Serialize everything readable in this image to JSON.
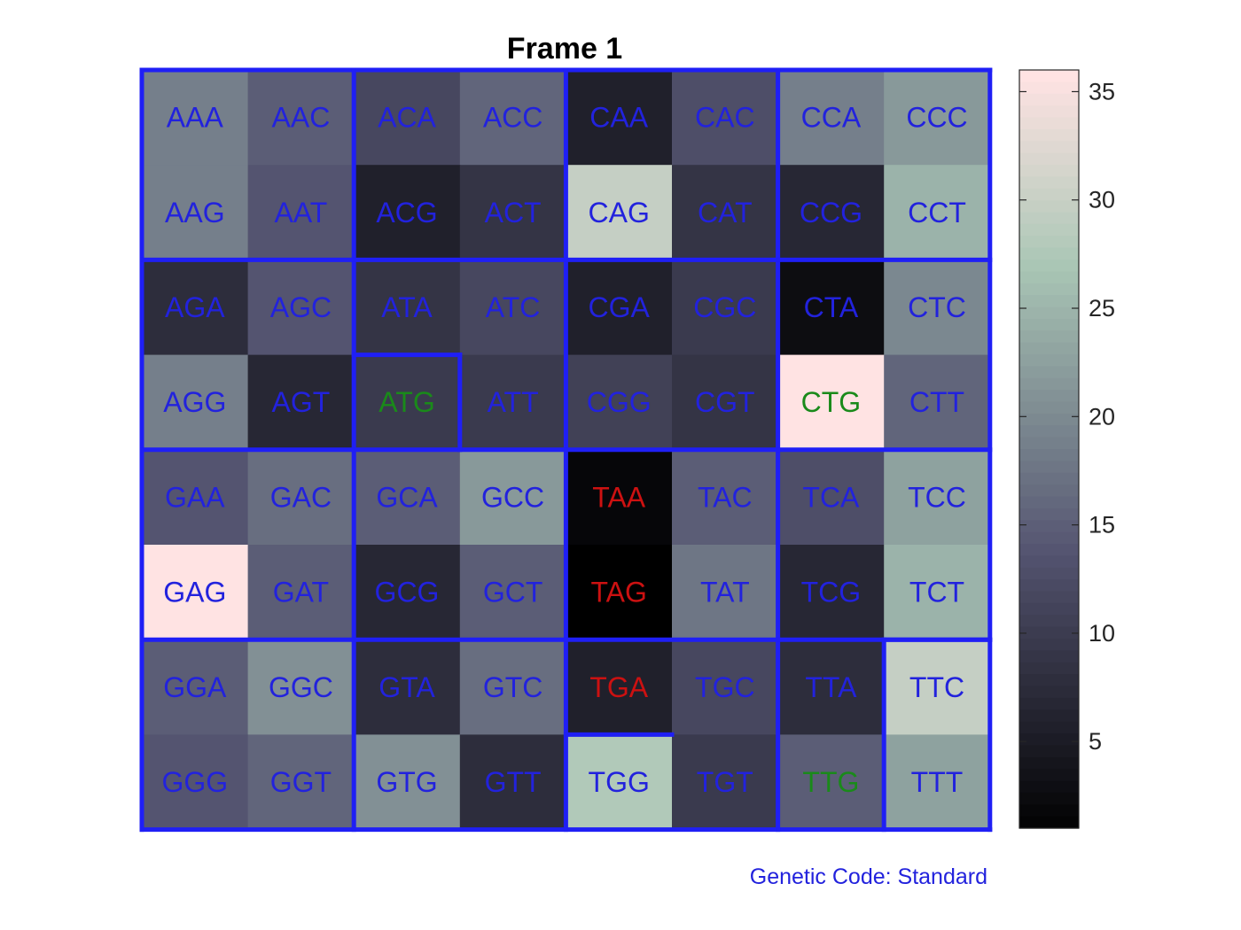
{
  "chart_data": {
    "type": "heatmap",
    "title": "Frame 1",
    "footnote": "Genetic Code: Standard",
    "rows": [
      [
        "AAA",
        "AAC",
        "ACA",
        "ACC",
        "CAA",
        "CAC",
        "CCA",
        "CCC"
      ],
      [
        "AAG",
        "AAT",
        "ACG",
        "ACT",
        "CAG",
        "CAT",
        "CCG",
        "CCT"
      ],
      [
        "AGA",
        "AGC",
        "ATA",
        "ATC",
        "CGA",
        "CGC",
        "CTA",
        "CTC"
      ],
      [
        "AGG",
        "AGT",
        "ATG",
        "ATT",
        "CGG",
        "CGT",
        "CTG",
        "CTT"
      ],
      [
        "GAA",
        "GAC",
        "GCA",
        "GCC",
        "TAA",
        "TAC",
        "TCA",
        "TCC"
      ],
      [
        "GAG",
        "GAT",
        "GCG",
        "GCT",
        "TAG",
        "TAT",
        "TCG",
        "TCT"
      ],
      [
        "GGA",
        "GGC",
        "GTA",
        "GTC",
        "TGA",
        "TGC",
        "TTA",
        "TTC"
      ],
      [
        "GGG",
        "GGT",
        "GTG",
        "GTT",
        "TGG",
        "TGT",
        "TTG",
        "TTT"
      ]
    ],
    "values": [
      [
        19,
        15,
        12,
        16,
        6,
        13,
        19,
        22
      ],
      [
        19,
        14,
        6,
        9,
        30,
        9,
        7,
        25
      ],
      [
        8,
        14,
        9,
        12,
        6,
        10,
        3,
        20
      ],
      [
        19,
        7,
        10,
        10,
        11,
        9,
        36,
        16
      ],
      [
        14,
        17,
        15,
        22,
        2,
        15,
        13,
        23
      ],
      [
        36,
        15,
        7,
        15,
        1,
        18,
        7,
        25
      ],
      [
        15,
        21,
        8,
        17,
        6,
        12,
        8,
        30
      ],
      [
        14,
        16,
        21,
        8,
        28,
        10,
        15,
        23
      ]
    ],
    "label_colors": [
      [
        "blue",
        "blue",
        "blue",
        "blue",
        "blue",
        "blue",
        "blue",
        "blue"
      ],
      [
        "blue",
        "blue",
        "blue",
        "blue",
        "blue",
        "blue",
        "blue",
        "blue"
      ],
      [
        "blue",
        "blue",
        "blue",
        "blue",
        "blue",
        "blue",
        "blue",
        "blue"
      ],
      [
        "blue",
        "blue",
        "green",
        "blue",
        "blue",
        "blue",
        "green",
        "blue"
      ],
      [
        "blue",
        "blue",
        "blue",
        "blue",
        "red",
        "blue",
        "blue",
        "blue"
      ],
      [
        "blue",
        "blue",
        "blue",
        "blue",
        "red",
        "blue",
        "blue",
        "blue"
      ],
      [
        "blue",
        "blue",
        "blue",
        "blue",
        "red",
        "blue",
        "blue",
        "blue"
      ],
      [
        "blue",
        "blue",
        "blue",
        "blue",
        "blue",
        "blue",
        "green",
        "blue"
      ]
    ],
    "colors": {
      "blue": "#2222dd",
      "green": "#1a8a1a",
      "red": "#cc1111",
      "border": "#1f1ff5"
    },
    "colorbar": {
      "min": 1,
      "max": 36,
      "ticks": [
        5,
        10,
        15,
        20,
        25,
        30,
        35
      ],
      "colormap": "bone"
    },
    "grid": false
  }
}
